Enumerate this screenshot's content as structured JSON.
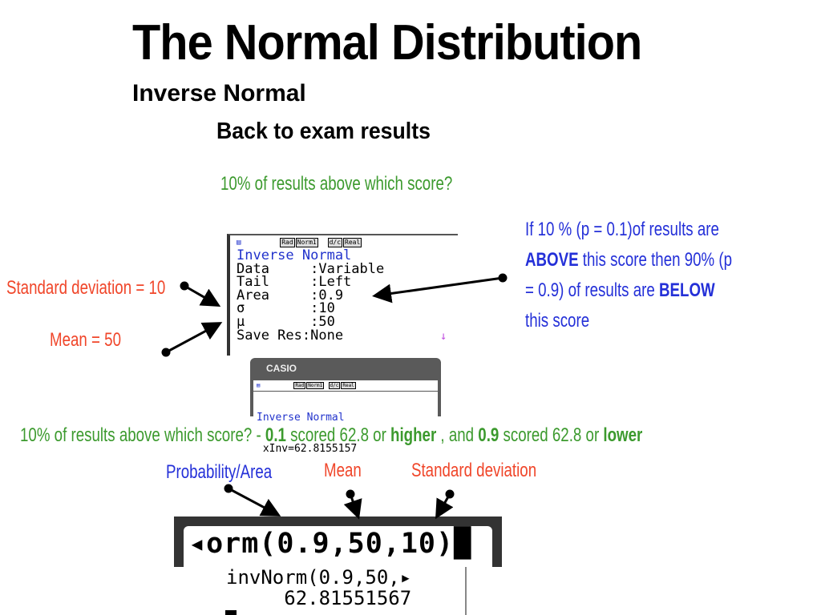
{
  "title": "The Normal Distribution",
  "subtitle": "Inverse Normal",
  "section": "Back to exam results",
  "question": "10% of results above which score?",
  "labels": {
    "sd": "Standard deviation = 10",
    "mean": "Mean = 50"
  },
  "explanation": {
    "p1": "If 10 % (p = 0.1)of results are",
    "b1": "ABOVE",
    "p2": " this score then 90% (p",
    "p3": "= 0.9) of results are ",
    "b2": "BELOW",
    "p4": "this score"
  },
  "calc1": {
    "status": [
      "Rad",
      "Norm1",
      "d/c",
      "Real"
    ],
    "header": "Inverse Normal",
    "rows": [
      "Data     :Variable",
      "Tail     :Left",
      "Area     :0.9",
      "σ        :10",
      "μ        :50",
      "Save Res:None"
    ],
    "scroll_icon": "↓"
  },
  "casio": {
    "brand": "CASIO",
    "status": [
      "Rad",
      "Norm1",
      "d/c",
      "Real"
    ],
    "header": "Inverse Normal",
    "result": " xInv=62.8155157"
  },
  "answer": {
    "a": "10% of results above which score? - ",
    "b": "0.1",
    "c": " scored 62.8 or ",
    "d": "higher",
    "e": " , and ",
    "f": "0.9",
    "g": " scored 62.8 or ",
    "h": "lower"
  },
  "args": {
    "prob": "Probability/Area",
    "mean": "Mean",
    "sd": "Standard deviation"
  },
  "ti": {
    "entry": "◂orm(0.9,50,10)█",
    "history": "invNorm(0.9,50,▸",
    "result": "     62.81551567"
  },
  "colors": {
    "green": "#3c9a2e",
    "red": "#f0462a",
    "blue": "#2430d8"
  }
}
